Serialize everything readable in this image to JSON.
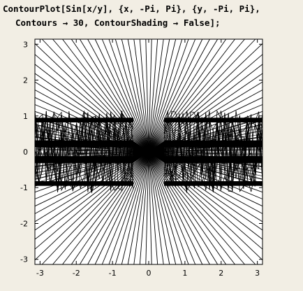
{
  "notebook": {
    "input_lines": [
      "ContourPlot[Sin[x/y], {x, -Pi, Pi}, {y, -Pi, Pi},",
      "Contours → 30, ContourShading → False];"
    ]
  },
  "plot": {
    "function": "Sin[x/y]",
    "x_range": [
      -3.14159,
      3.14159
    ],
    "y_range": [
      -3.14159,
      3.14159
    ],
    "contour_count": 30,
    "contour_shading": false,
    "x_ticks": [
      "-3",
      "-2",
      "-1",
      "0",
      "1",
      "2",
      "3"
    ],
    "y_ticks": [
      "3",
      "2",
      "1",
      "0",
      "-1",
      "-2",
      "-3"
    ],
    "background_color": "#ffffff",
    "line_color": "#000000"
  }
}
